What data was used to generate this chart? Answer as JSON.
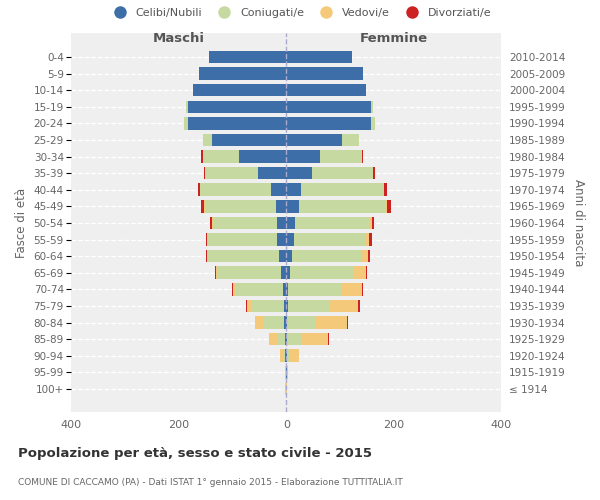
{
  "age_groups": [
    "100+",
    "95-99",
    "90-94",
    "85-89",
    "80-84",
    "75-79",
    "70-74",
    "65-69",
    "60-64",
    "55-59",
    "50-54",
    "45-49",
    "40-44",
    "35-39",
    "30-34",
    "25-29",
    "20-24",
    "15-19",
    "10-14",
    "5-9",
    "0-4"
  ],
  "birth_years": [
    "≤ 1914",
    "1915-1919",
    "1920-1924",
    "1925-1929",
    "1930-1934",
    "1935-1939",
    "1940-1944",
    "1945-1949",
    "1950-1954",
    "1955-1959",
    "1960-1964",
    "1965-1969",
    "1970-1974",
    "1975-1979",
    "1980-1984",
    "1985-1989",
    "1990-1994",
    "1995-1999",
    "2000-2004",
    "2005-2009",
    "2010-2014"
  ],
  "male_celibi": [
    1,
    1,
    2,
    3,
    4,
    5,
    7,
    9,
    13,
    17,
    18,
    20,
    28,
    52,
    88,
    138,
    183,
    183,
    173,
    163,
    143
  ],
  "male_coniugati": [
    1,
    1,
    4,
    14,
    40,
    58,
    88,
    118,
    132,
    128,
    118,
    132,
    132,
    98,
    68,
    18,
    8,
    4,
    1,
    0,
    0
  ],
  "male_vedovi": [
    0,
    1,
    5,
    15,
    14,
    10,
    5,
    4,
    3,
    2,
    2,
    2,
    1,
    1,
    0,
    0,
    0,
    0,
    0,
    0,
    0
  ],
  "male_divorziati": [
    0,
    0,
    0,
    0,
    0,
    2,
    2,
    2,
    2,
    3,
    4,
    5,
    3,
    3,
    2,
    0,
    0,
    0,
    0,
    0,
    0
  ],
  "female_celibi": [
    0,
    1,
    1,
    2,
    2,
    3,
    4,
    7,
    11,
    14,
    17,
    23,
    28,
    48,
    63,
    103,
    158,
    158,
    148,
    143,
    123
  ],
  "female_coniugati": [
    0,
    0,
    4,
    28,
    53,
    78,
    98,
    118,
    128,
    132,
    138,
    162,
    152,
    113,
    78,
    33,
    8,
    3,
    0,
    0,
    0
  ],
  "female_vedovi": [
    1,
    2,
    18,
    48,
    58,
    53,
    38,
    23,
    13,
    8,
    5,
    3,
    2,
    1,
    0,
    0,
    0,
    0,
    0,
    0,
    0
  ],
  "female_divorziati": [
    0,
    0,
    0,
    2,
    1,
    4,
    2,
    2,
    3,
    5,
    4,
    6,
    5,
    4,
    2,
    0,
    0,
    0,
    0,
    0,
    0
  ],
  "color_celibi": "#3d6ea8",
  "color_coniugati": "#c5d9a0",
  "color_vedovi": "#f5c97a",
  "color_divorziati": "#cc2222",
  "title": "Popolazione per età, sesso e stato civile - 2015",
  "subtitle": "COMUNE DI CACCAMO (PA) - Dati ISTAT 1° gennaio 2015 - Elaborazione TUTTITALIA.IT",
  "label_maschi": "Maschi",
  "label_femmine": "Femmine",
  "ylabel_left": "Fasce di età",
  "ylabel_right": "Anni di nascita",
  "legend_labels": [
    "Celibi/Nubili",
    "Coniugati/e",
    "Vedovi/e",
    "Divorziati/e"
  ],
  "xlim": 400,
  "bg_color": "#ffffff",
  "plot_bg_color": "#efefef"
}
